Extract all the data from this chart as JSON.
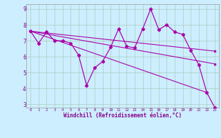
{
  "xlabel": "Windchill (Refroidissement éolien,°C)",
  "background_color": "#cceeff",
  "grid_color": "#aaccbb",
  "line_color": "#aa00aa",
  "xlim": [
    -0.5,
    23.5
  ],
  "ylim": [
    2.8,
    9.3
  ],
  "x_ticks": [
    0,
    1,
    2,
    3,
    4,
    5,
    6,
    7,
    8,
    9,
    10,
    11,
    12,
    13,
    14,
    15,
    16,
    17,
    18,
    19,
    20,
    21,
    22,
    23
  ],
  "y_ticks": [
    3,
    4,
    5,
    6,
    7,
    8,
    9
  ],
  "series1_x": [
    0,
    1,
    2,
    3,
    4,
    5,
    6,
    7,
    8,
    9,
    10,
    11,
    12,
    13,
    14,
    15,
    16,
    17,
    18,
    19,
    20,
    21,
    22,
    23
  ],
  "series1_y": [
    7.6,
    6.85,
    7.55,
    7.0,
    7.0,
    6.85,
    6.1,
    4.2,
    5.3,
    5.7,
    6.6,
    7.75,
    6.65,
    6.55,
    7.75,
    9.0,
    7.7,
    8.0,
    7.55,
    7.4,
    6.4,
    5.5,
    3.75,
    2.8
  ],
  "series2_x": [
    0,
    23
  ],
  "series2_y": [
    7.6,
    6.35
  ],
  "series3_x": [
    0,
    23
  ],
  "series3_y": [
    7.6,
    5.55
  ],
  "series4_x": [
    0,
    22
  ],
  "series4_y": [
    7.6,
    3.75
  ]
}
